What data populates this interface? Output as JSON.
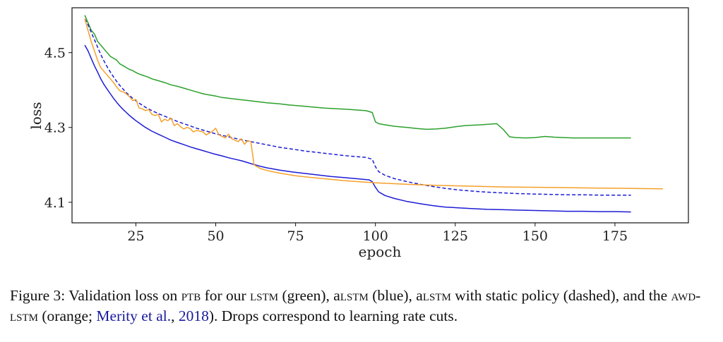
{
  "chart_data": {
    "type": "line",
    "xlabel": "epoch",
    "ylabel": "loss",
    "xlim": [
      5,
      198
    ],
    "ylim": [
      4.045,
      4.62
    ],
    "x_ticks": [
      25,
      50,
      75,
      100,
      125,
      150,
      175
    ],
    "y_ticks": [
      4.1,
      4.3,
      4.5
    ],
    "y_tick_labels": [
      "4.1",
      "4.3",
      "4.5"
    ],
    "grid": false,
    "legend": "none",
    "series": [
      {
        "key": "lstm",
        "color": "#2ca02c",
        "style": "solid",
        "points": [
          [
            9,
            4.6
          ],
          [
            10,
            4.58
          ],
          [
            11,
            4.56
          ],
          [
            12,
            4.55
          ],
          [
            13,
            4.53
          ],
          [
            14,
            4.52
          ],
          [
            15,
            4.51
          ],
          [
            16,
            4.5
          ],
          [
            17,
            4.49
          ],
          [
            18,
            4.485
          ],
          [
            19,
            4.48
          ],
          [
            20,
            4.47
          ],
          [
            21,
            4.465
          ],
          [
            22,
            4.46
          ],
          [
            23,
            4.455
          ],
          [
            24,
            4.452
          ],
          [
            25,
            4.447
          ],
          [
            26,
            4.443
          ],
          [
            27,
            4.44
          ],
          [
            28,
            4.437
          ],
          [
            29,
            4.434
          ],
          [
            30,
            4.43
          ],
          [
            32,
            4.425
          ],
          [
            34,
            4.42
          ],
          [
            36,
            4.414
          ],
          [
            38,
            4.41
          ],
          [
            40,
            4.405
          ],
          [
            42,
            4.4
          ],
          [
            44,
            4.395
          ],
          [
            46,
            4.39
          ],
          [
            48,
            4.387
          ],
          [
            50,
            4.384
          ],
          [
            52,
            4.38
          ],
          [
            55,
            4.377
          ],
          [
            58,
            4.374
          ],
          [
            60,
            4.372
          ],
          [
            63,
            4.369
          ],
          [
            66,
            4.366
          ],
          [
            70,
            4.363
          ],
          [
            73,
            4.36
          ],
          [
            76,
            4.358
          ],
          [
            80,
            4.355
          ],
          [
            84,
            4.352
          ],
          [
            88,
            4.35
          ],
          [
            92,
            4.348
          ],
          [
            95,
            4.346
          ],
          [
            97,
            4.345
          ],
          [
            99,
            4.34
          ],
          [
            100,
            4.315
          ],
          [
            101,
            4.31
          ],
          [
            103,
            4.307
          ],
          [
            106,
            4.303
          ],
          [
            110,
            4.3
          ],
          [
            113,
            4.297
          ],
          [
            116,
            4.295
          ],
          [
            119,
            4.296
          ],
          [
            122,
            4.298
          ],
          [
            125,
            4.302
          ],
          [
            128,
            4.305
          ],
          [
            130,
            4.306
          ],
          [
            133,
            4.307
          ],
          [
            136,
            4.309
          ],
          [
            138,
            4.31
          ],
          [
            140,
            4.295
          ],
          [
            142,
            4.275
          ],
          [
            144,
            4.273
          ],
          [
            147,
            4.272
          ],
          [
            150,
            4.273
          ],
          [
            153,
            4.276
          ],
          [
            156,
            4.274
          ],
          [
            159,
            4.273
          ],
          [
            162,
            4.272
          ],
          [
            166,
            4.272
          ],
          [
            170,
            4.272
          ],
          [
            175,
            4.272
          ],
          [
            180,
            4.272
          ]
        ]
      },
      {
        "key": "alstm",
        "color": "#1c1cd6",
        "style": "solid",
        "points": [
          [
            9,
            4.52
          ],
          [
            10,
            4.505
          ],
          [
            11,
            4.485
          ],
          [
            12,
            4.465
          ],
          [
            13,
            4.448
          ],
          [
            14,
            4.43
          ],
          [
            15,
            4.415
          ],
          [
            16,
            4.402
          ],
          [
            17,
            4.39
          ],
          [
            18,
            4.378
          ],
          [
            19,
            4.367
          ],
          [
            20,
            4.357
          ],
          [
            21,
            4.348
          ],
          [
            22,
            4.34
          ],
          [
            23,
            4.332
          ],
          [
            24,
            4.325
          ],
          [
            25,
            4.318
          ],
          [
            26,
            4.312
          ],
          [
            27,
            4.306
          ],
          [
            28,
            4.3
          ],
          [
            30,
            4.29
          ],
          [
            32,
            4.282
          ],
          [
            34,
            4.274
          ],
          [
            36,
            4.266
          ],
          [
            38,
            4.26
          ],
          [
            40,
            4.254
          ],
          [
            42,
            4.248
          ],
          [
            44,
            4.243
          ],
          [
            46,
            4.238
          ],
          [
            48,
            4.233
          ],
          [
            50,
            4.228
          ],
          [
            52,
            4.224
          ],
          [
            54,
            4.219
          ],
          [
            56,
            4.215
          ],
          [
            58,
            4.211
          ],
          [
            60,
            4.206
          ],
          [
            62,
            4.201
          ],
          [
            64,
            4.196
          ],
          [
            66,
            4.192
          ],
          [
            68,
            4.189
          ],
          [
            70,
            4.186
          ],
          [
            74,
            4.181
          ],
          [
            78,
            4.177
          ],
          [
            82,
            4.173
          ],
          [
            86,
            4.169
          ],
          [
            90,
            4.166
          ],
          [
            94,
            4.163
          ],
          [
            98,
            4.16
          ],
          [
            99,
            4.155
          ],
          [
            100,
            4.14
          ],
          [
            101,
            4.128
          ],
          [
            103,
            4.118
          ],
          [
            106,
            4.11
          ],
          [
            110,
            4.102
          ],
          [
            114,
            4.096
          ],
          [
            118,
            4.091
          ],
          [
            122,
            4.087
          ],
          [
            126,
            4.085
          ],
          [
            130,
            4.083
          ],
          [
            135,
            4.081
          ],
          [
            140,
            4.08
          ],
          [
            145,
            4.079
          ],
          [
            150,
            4.078
          ],
          [
            155,
            4.077
          ],
          [
            160,
            4.076
          ],
          [
            165,
            4.076
          ],
          [
            170,
            4.075
          ],
          [
            175,
            4.075
          ],
          [
            180,
            4.074
          ]
        ]
      },
      {
        "key": "alstm-static",
        "color": "#1c1cd6",
        "style": "dashed",
        "points": [
          [
            9,
            4.59
          ],
          [
            10,
            4.575
          ],
          [
            11,
            4.555
          ],
          [
            12,
            4.535
          ],
          [
            13,
            4.515
          ],
          [
            14,
            4.495
          ],
          [
            15,
            4.478
          ],
          [
            16,
            4.462
          ],
          [
            17,
            4.448
          ],
          [
            18,
            4.435
          ],
          [
            19,
            4.423
          ],
          [
            20,
            4.412
          ],
          [
            22,
            4.393
          ],
          [
            24,
            4.378
          ],
          [
            26,
            4.365
          ],
          [
            28,
            4.354
          ],
          [
            30,
            4.345
          ],
          [
            32,
            4.337
          ],
          [
            34,
            4.33
          ],
          [
            36,
            4.323
          ],
          [
            38,
            4.316
          ],
          [
            40,
            4.31
          ],
          [
            42,
            4.304
          ],
          [
            44,
            4.298
          ],
          [
            46,
            4.293
          ],
          [
            48,
            4.288
          ],
          [
            50,
            4.283
          ],
          [
            52,
            4.279
          ],
          [
            55,
            4.273
          ],
          [
            58,
            4.267
          ],
          [
            61,
            4.262
          ],
          [
            64,
            4.257
          ],
          [
            67,
            4.252
          ],
          [
            70,
            4.247
          ],
          [
            74,
            4.242
          ],
          [
            78,
            4.237
          ],
          [
            82,
            4.233
          ],
          [
            86,
            4.229
          ],
          [
            90,
            4.225
          ],
          [
            94,
            4.222
          ],
          [
            97,
            4.22
          ],
          [
            99,
            4.215
          ],
          [
            100,
            4.195
          ],
          [
            101,
            4.182
          ],
          [
            103,
            4.172
          ],
          [
            106,
            4.163
          ],
          [
            110,
            4.155
          ],
          [
            114,
            4.148
          ],
          [
            118,
            4.142
          ],
          [
            122,
            4.137
          ],
          [
            126,
            4.133
          ],
          [
            130,
            4.13
          ],
          [
            135,
            4.127
          ],
          [
            140,
            4.125
          ],
          [
            145,
            4.123
          ],
          [
            150,
            4.122
          ],
          [
            155,
            4.121
          ],
          [
            160,
            4.12
          ],
          [
            165,
            4.12
          ],
          [
            170,
            4.119
          ],
          [
            175,
            4.119
          ],
          [
            180,
            4.119
          ]
        ]
      },
      {
        "key": "awd-lstm",
        "color": "#f5a02a",
        "style": "solid",
        "points": [
          [
            9,
            4.59
          ],
          [
            10,
            4.56
          ],
          [
            11,
            4.53
          ],
          [
            12,
            4.505
          ],
          [
            13,
            4.48
          ],
          [
            14,
            4.46
          ],
          [
            15,
            4.45
          ],
          [
            16,
            4.44
          ],
          [
            17,
            4.43
          ],
          [
            18,
            4.42
          ],
          [
            19,
            4.408
          ],
          [
            20,
            4.398
          ],
          [
            21,
            4.395
          ],
          [
            22,
            4.39
          ],
          [
            23,
            4.382
          ],
          [
            24,
            4.372
          ],
          [
            25,
            4.375
          ],
          [
            26,
            4.352
          ],
          [
            27,
            4.35
          ],
          [
            28,
            4.345
          ],
          [
            29,
            4.348
          ],
          [
            30,
            4.335
          ],
          [
            31,
            4.332
          ],
          [
            32,
            4.335
          ],
          [
            33,
            4.315
          ],
          [
            34,
            4.322
          ],
          [
            35,
            4.318
          ],
          [
            36,
            4.325
          ],
          [
            37,
            4.305
          ],
          [
            38,
            4.31
          ],
          [
            39,
            4.302
          ],
          [
            40,
            4.296
          ],
          [
            41,
            4.3
          ],
          [
            42,
            4.297
          ],
          [
            43,
            4.288
          ],
          [
            44,
            4.292
          ],
          [
            45,
            4.29
          ],
          [
            46,
            4.288
          ],
          [
            47,
            4.28
          ],
          [
            48,
            4.285
          ],
          [
            49,
            4.29
          ],
          [
            50,
            4.298
          ],
          [
            51,
            4.28
          ],
          [
            52,
            4.276
          ],
          [
            53,
            4.272
          ],
          [
            54,
            4.282
          ],
          [
            55,
            4.27
          ],
          [
            56,
            4.266
          ],
          [
            57,
            4.262
          ],
          [
            58,
            4.27
          ],
          [
            59,
            4.255
          ],
          [
            60,
            4.265
          ],
          [
            61,
            4.262
          ],
          [
            62,
            4.2
          ],
          [
            64,
            4.19
          ],
          [
            66,
            4.185
          ],
          [
            70,
            4.178
          ],
          [
            75,
            4.171
          ],
          [
            80,
            4.166
          ],
          [
            85,
            4.162
          ],
          [
            90,
            4.158
          ],
          [
            95,
            4.155
          ],
          [
            100,
            4.152
          ],
          [
            110,
            4.148
          ],
          [
            120,
            4.145
          ],
          [
            130,
            4.143
          ],
          [
            140,
            4.141
          ],
          [
            150,
            4.14
          ],
          [
            160,
            4.139
          ],
          [
            170,
            4.138
          ],
          [
            180,
            4.137
          ],
          [
            190,
            4.136
          ]
        ]
      }
    ]
  },
  "caption": {
    "prefix": "Figure 3: Validation loss on ",
    "ptb": "ptb",
    "part2": " for our ",
    "lstm1": "lstm",
    "part3": " (green), a",
    "lstm2": "lstm",
    "part4": " (blue), a",
    "lstm3": "lstm",
    "part5": " with static policy (dashed), and the ",
    "awd": "awd-lstm",
    "part6": " (orange; ",
    "cite_author": "Merity et al.",
    "cite_sep": ", ",
    "cite_year": "2018",
    "part7": "). Drops correspond to learning rate cuts."
  }
}
